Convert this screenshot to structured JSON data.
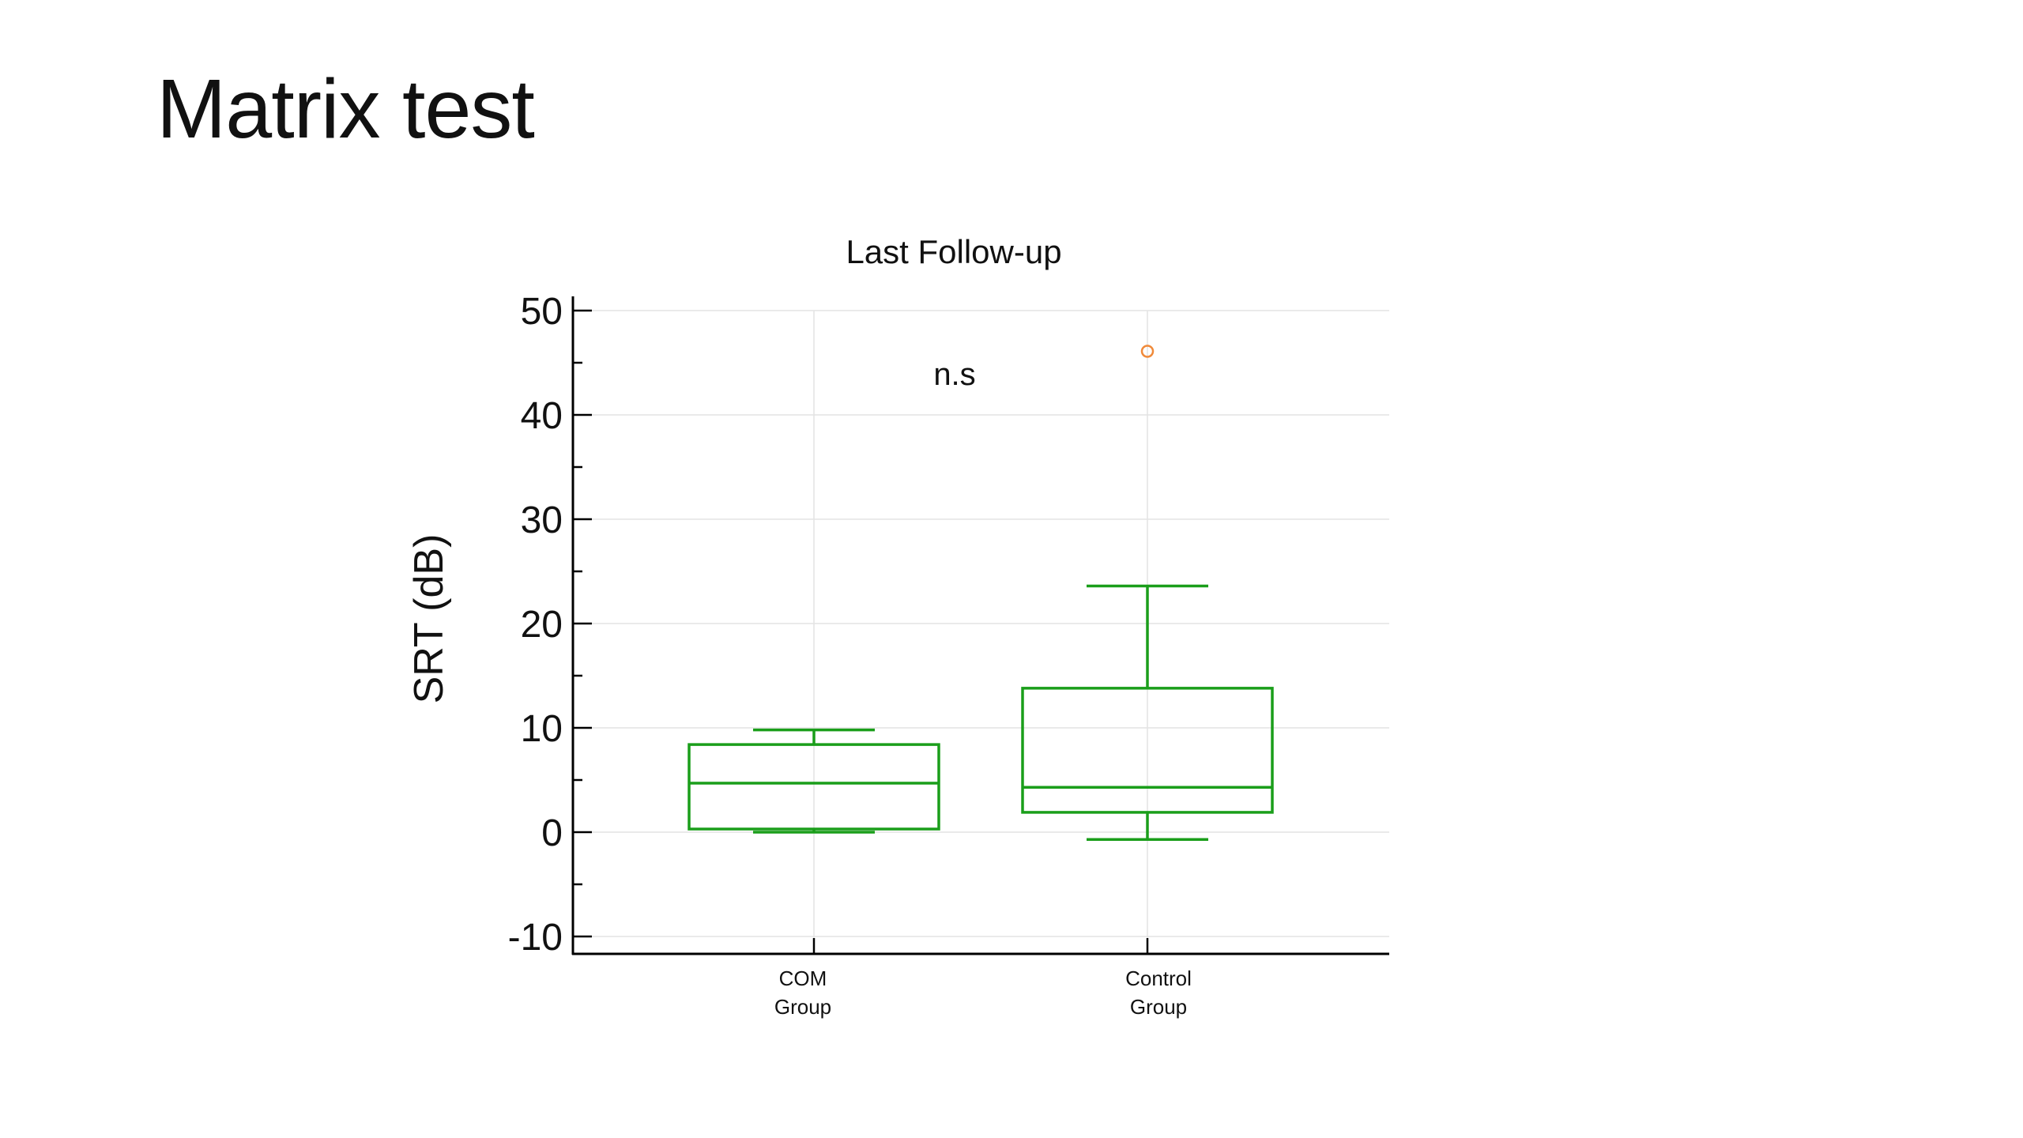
{
  "slide": {
    "title": "Matrix test"
  },
  "chart_data": {
    "type": "box",
    "title": "Last Follow-up",
    "xlabel": "",
    "ylabel": "SRT (dB)",
    "ylim": [
      -12,
      51
    ],
    "yticks": [
      50,
      40,
      30,
      20,
      10,
      0,
      -10
    ],
    "grid": true,
    "annotation": "n.s",
    "categories": [
      [
        "COM",
        "Group"
      ],
      [
        "Control",
        "Group"
      ]
    ],
    "boxes": [
      {
        "whisker_low": 0.0,
        "q1": 0.3,
        "median": 4.7,
        "q3": 8.4,
        "whisker_high": 9.8,
        "outliers": []
      },
      {
        "whisker_low": -0.7,
        "q1": 1.9,
        "median": 4.3,
        "q3": 13.8,
        "whisker_high": 23.6,
        "outliers": [
          46.1
        ]
      }
    ],
    "colors": {
      "box": "#1a9e1a",
      "outlier": "#f08a3a",
      "axis": "#000000",
      "grid": "#e3e3e3"
    }
  }
}
